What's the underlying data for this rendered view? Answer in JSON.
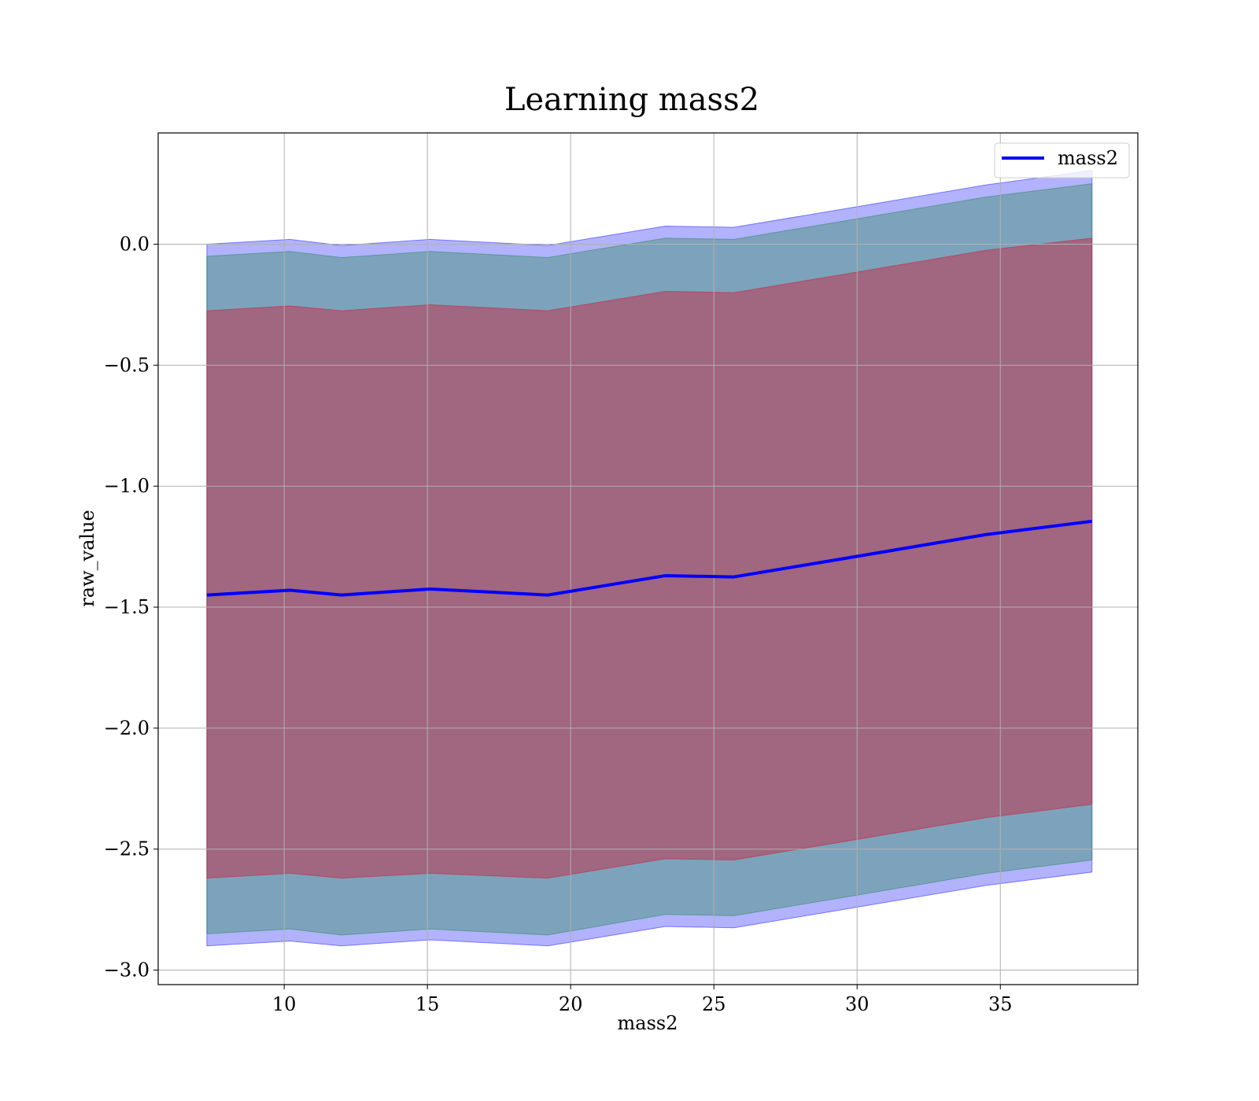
{
  "chart_data": {
    "type": "line",
    "title": "Learning mass2",
    "xlabel": "mass2",
    "ylabel": "raw_value",
    "xlim": [
      5.6,
      39.8
    ],
    "ylim": [
      -3.06,
      0.46
    ],
    "grid": true,
    "legend_position": "top-right",
    "x_ticks": [
      10,
      15,
      20,
      25,
      30,
      35
    ],
    "x_tick_labels": [
      "10",
      "15",
      "20",
      "25",
      "30",
      "35"
    ],
    "y_ticks": [
      0.0,
      -0.5,
      -1.0,
      -1.5,
      -2.0,
      -2.5,
      -3.0
    ],
    "y_tick_labels": [
      "0.0",
      "−0.5",
      "−1.0",
      "−1.5",
      "−2.0",
      "−2.5",
      "−3.0"
    ],
    "x": [
      7.3,
      10.2,
      12.0,
      15.1,
      19.2,
      23.3,
      25.7,
      29.5,
      34.5,
      38.2
    ],
    "series": [
      {
        "name": "mass2",
        "color": "#0000ff",
        "values": [
          -1.45,
          -1.43,
          -1.45,
          -1.425,
          -1.45,
          -1.37,
          -1.375,
          -1.3,
          -1.2,
          -1.145
        ]
      }
    ],
    "bands": [
      {
        "color": "#0000ff",
        "opacity": 0.3,
        "upper": [
          0.0,
          0.02,
          -0.005,
          0.02,
          -0.005,
          0.075,
          0.07,
          0.145,
          0.245,
          0.305
        ],
        "lower": [
          -2.9,
          -2.88,
          -2.9,
          -2.875,
          -2.9,
          -2.82,
          -2.825,
          -2.75,
          -2.65,
          -2.595
        ]
      },
      {
        "color": "#2e8b57",
        "opacity": 0.4,
        "upper": [
          -0.05,
          -0.03,
          -0.055,
          -0.03,
          -0.055,
          0.025,
          0.02,
          0.095,
          0.195,
          0.25
        ],
        "lower": [
          -2.85,
          -2.83,
          -2.855,
          -2.83,
          -2.855,
          -2.77,
          -2.775,
          -2.7,
          -2.6,
          -2.545
        ]
      },
      {
        "color": "#c0344f",
        "opacity": 0.55,
        "upper": [
          -0.275,
          -0.255,
          -0.275,
          -0.25,
          -0.275,
          -0.195,
          -0.2,
          -0.125,
          -0.025,
          0.025
        ],
        "lower": [
          -2.62,
          -2.6,
          -2.62,
          -2.6,
          -2.62,
          -2.54,
          -2.545,
          -2.47,
          -2.37,
          -2.315
        ]
      }
    ]
  }
}
